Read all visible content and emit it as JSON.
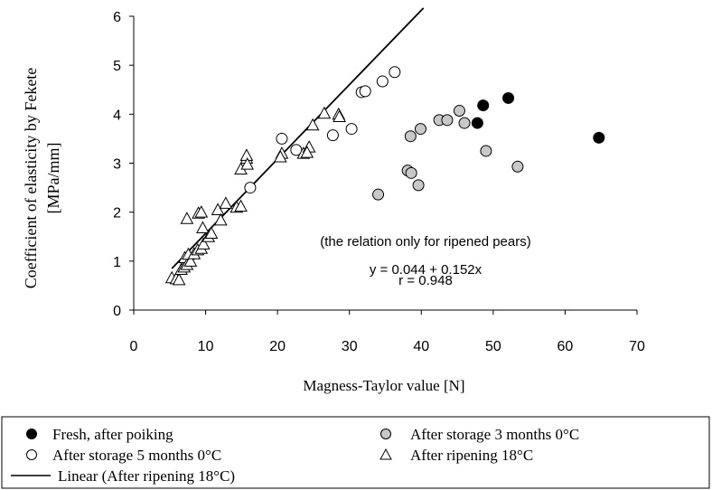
{
  "chart_data": {
    "type": "scatter",
    "xlabel": "Magness-Taylor value [N]",
    "ylabel_line1": "Coefficient of elasticity by Fekete",
    "ylabel_line2": "[MPa/mm]",
    "xlim": [
      0,
      70
    ],
    "ylim": [
      0,
      6
    ],
    "x_ticks": [
      "0",
      "10",
      "20",
      "30",
      "40",
      "50",
      "60",
      "70"
    ],
    "y_ticks": [
      "0",
      "1",
      "2",
      "3",
      "4",
      "5",
      "6"
    ],
    "grid": false,
    "legend_position": "bottom",
    "annotations": {
      "note": "(the relation only for ripened pears)",
      "equation": "y = 0.044 + 0.152x",
      "r_value": "r = 0.948"
    },
    "series": [
      {
        "name": "Fresh,  after poiking",
        "marker": "filled-circle",
        "color": "#000000",
        "points": [
          [
            47.8,
            3.82
          ],
          [
            48.6,
            4.18
          ],
          [
            52.1,
            4.33
          ],
          [
            64.7,
            3.52
          ]
        ]
      },
      {
        "name": "After storage 5 months 0°C",
        "marker": "open-circle",
        "color": "#ffffff",
        "points": [
          [
            16.2,
            2.5
          ],
          [
            20.6,
            3.5
          ],
          [
            22.6,
            3.27
          ],
          [
            27.7,
            3.57
          ],
          [
            30.3,
            3.7
          ],
          [
            31.7,
            4.45
          ],
          [
            32.2,
            4.47
          ],
          [
            34.6,
            4.67
          ],
          [
            36.3,
            4.86
          ]
        ]
      },
      {
        "name": "After storage 3 months 0°C",
        "marker": "gray-circle",
        "color": "#c8c8c8",
        "points": [
          [
            34.0,
            2.36
          ],
          [
            38.1,
            2.85
          ],
          [
            38.6,
            2.8
          ],
          [
            38.5,
            3.55
          ],
          [
            39.6,
            2.55
          ],
          [
            39.9,
            3.7
          ],
          [
            42.5,
            3.88
          ],
          [
            43.6,
            3.88
          ],
          [
            45.3,
            4.07
          ],
          [
            46.0,
            3.82
          ],
          [
            49.0,
            3.25
          ],
          [
            53.4,
            2.93
          ]
        ]
      },
      {
        "name": "After ripening 18°C",
        "marker": "open-triangle",
        "color": "#ffffff",
        "points": [
          [
            5.3,
            0.66
          ],
          [
            5.9,
            0.64
          ],
          [
            6.3,
            0.62
          ],
          [
            6.6,
            0.83
          ],
          [
            7.0,
            0.88
          ],
          [
            7.1,
            1.07
          ],
          [
            7.4,
            0.93
          ],
          [
            7.6,
            1.14
          ],
          [
            7.4,
            1.87
          ],
          [
            7.9,
            1.0
          ],
          [
            8.4,
            1.15
          ],
          [
            8.9,
            1.23
          ],
          [
            9.0,
            1.98
          ],
          [
            9.4,
            2.0
          ],
          [
            9.4,
            1.26
          ],
          [
            9.7,
            1.35
          ],
          [
            9.6,
            1.68
          ],
          [
            10.4,
            1.5
          ],
          [
            10.8,
            1.57
          ],
          [
            11.7,
            2.05
          ],
          [
            12.1,
            1.84
          ],
          [
            12.8,
            2.18
          ],
          [
            14.3,
            2.1
          ],
          [
            14.9,
            2.12
          ],
          [
            14.9,
            2.88
          ],
          [
            15.7,
            3.1
          ],
          [
            15.7,
            3.16
          ],
          [
            15.8,
            2.98
          ],
          [
            20.6,
            3.2
          ],
          [
            20.4,
            3.13
          ],
          [
            23.6,
            3.2
          ],
          [
            24.4,
            3.33
          ],
          [
            24.1,
            3.22
          ],
          [
            24.9,
            3.78
          ],
          [
            26.5,
            4.02
          ],
          [
            28.5,
            4.0
          ],
          [
            28.6,
            3.95
          ]
        ]
      },
      {
        "name": "Linear (After ripening 18°C)",
        "marker": "line",
        "color": "#000000",
        "intercept": 0.044,
        "slope": 0.152,
        "x_range": [
          5.3,
          40.3
        ]
      }
    ]
  }
}
